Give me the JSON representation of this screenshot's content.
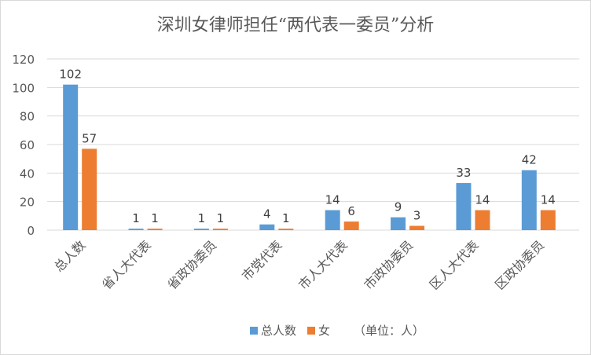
{
  "chart_data": {
    "type": "bar",
    "title": "深圳女律师担任“两代表一委员”分析",
    "categories": [
      "总人数",
      "省人大代表",
      "省政协委员",
      "市党代表",
      "市人大代表",
      "市政协委员",
      "区人大代表",
      "区政协委员"
    ],
    "series": [
      {
        "name": "总人数",
        "color": "#5b9bd5",
        "values": [
          102,
          1,
          1,
          4,
          14,
          9,
          33,
          42
        ]
      },
      {
        "name": "女",
        "color": "#ed7d31",
        "values": [
          57,
          1,
          1,
          1,
          6,
          3,
          14,
          14
        ]
      }
    ],
    "note": "（单位：人）",
    "ylim": [
      0,
      120
    ],
    "yticks": [
      0,
      20,
      40,
      60,
      80,
      100,
      120
    ],
    "grid": true,
    "legend": "bottom"
  }
}
